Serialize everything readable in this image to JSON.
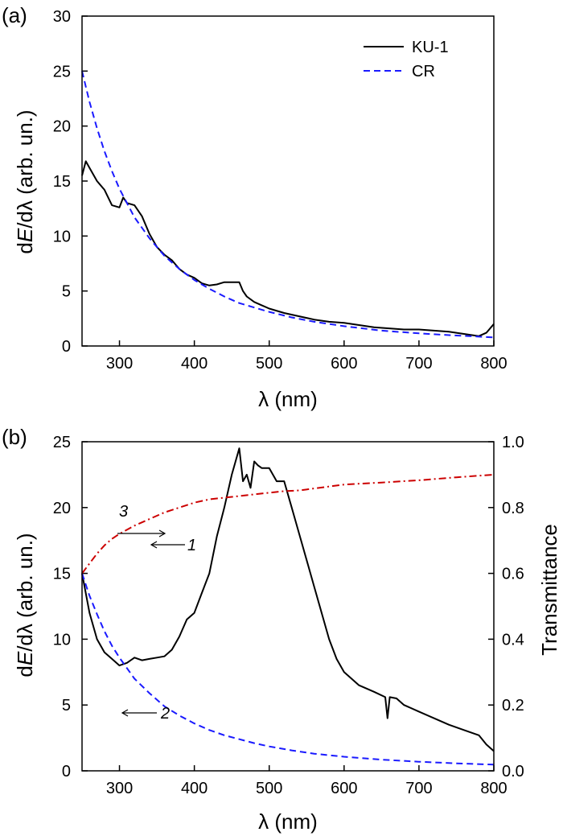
{
  "chart_data": [
    {
      "panel_label": "(a)",
      "type": "line",
      "xlabel": "λ (nm)",
      "ylabel": "dE/dλ (arb. un.)",
      "xlim": [
        250,
        800
      ],
      "ylim": [
        0,
        30
      ],
      "xticks": [
        300,
        400,
        500,
        600,
        700,
        800
      ],
      "yticks": [
        0,
        5,
        10,
        15,
        20,
        25,
        30
      ],
      "grid": false,
      "legend": "top-right",
      "series": [
        {
          "name": "KU-1",
          "color": "#000000",
          "style": "solid",
          "x": [
            250,
            255,
            260,
            270,
            280,
            290,
            300,
            305,
            310,
            320,
            330,
            340,
            350,
            360,
            370,
            380,
            390,
            400,
            410,
            420,
            430,
            440,
            450,
            460,
            465,
            470,
            480,
            490,
            500,
            520,
            540,
            560,
            580,
            600,
            620,
            640,
            660,
            680,
            700,
            720,
            740,
            760,
            780,
            790,
            800
          ],
          "values": [
            15.5,
            16.8,
            16.2,
            15.0,
            14.2,
            12.8,
            12.6,
            13.5,
            13.0,
            12.8,
            11.8,
            10.2,
            9.0,
            8.3,
            7.8,
            7.0,
            6.5,
            6.2,
            5.7,
            5.5,
            5.6,
            5.8,
            5.8,
            5.8,
            5.0,
            4.5,
            4.0,
            3.7,
            3.4,
            3.0,
            2.7,
            2.4,
            2.2,
            2.1,
            1.9,
            1.7,
            1.6,
            1.5,
            1.5,
            1.4,
            1.3,
            1.1,
            0.9,
            1.2,
            2.0
          ]
        },
        {
          "name": "CR",
          "color": "#1a1aff",
          "style": "dashed",
          "x": [
            250,
            260,
            270,
            280,
            290,
            300,
            320,
            340,
            360,
            380,
            400,
            420,
            440,
            460,
            480,
            500,
            530,
            560,
            600,
            650,
            700,
            750,
            800
          ],
          "values": [
            25.0,
            22.2,
            19.8,
            17.7,
            15.9,
            14.3,
            11.7,
            9.8,
            8.2,
            7.0,
            6.0,
            5.2,
            4.5,
            3.9,
            3.5,
            3.1,
            2.6,
            2.2,
            1.8,
            1.4,
            1.15,
            0.95,
            0.78
          ]
        }
      ]
    },
    {
      "panel_label": "(b)",
      "type": "line",
      "xlabel": "λ (nm)",
      "ylabel": "dE/dλ (arb. un.)",
      "y2label": "Transmittance",
      "xlim": [
        250,
        800
      ],
      "ylim": [
        0,
        25
      ],
      "y2lim": [
        0,
        1.0
      ],
      "xticks": [
        300,
        400,
        500,
        600,
        700,
        800
      ],
      "yticks": [
        0,
        5,
        10,
        15,
        20,
        25
      ],
      "y2ticks": [
        "0.0",
        "0.2",
        "0.4",
        "0.6",
        "0.8",
        "1.0"
      ],
      "grid": false,
      "series": [
        {
          "name": "1",
          "axis": "left",
          "color": "#000000",
          "style": "solid",
          "x": [
            250,
            260,
            270,
            280,
            290,
            300,
            310,
            320,
            330,
            340,
            350,
            360,
            370,
            380,
            390,
            400,
            410,
            420,
            430,
            440,
            450,
            460,
            465,
            470,
            475,
            480,
            485,
            490,
            500,
            510,
            520,
            530,
            540,
            550,
            560,
            570,
            580,
            590,
            600,
            620,
            640,
            655,
            658,
            661,
            670,
            680,
            700,
            720,
            740,
            760,
            780,
            790,
            800
          ],
          "values": [
            15.0,
            12.0,
            10.0,
            9.0,
            8.5,
            8.0,
            8.2,
            8.6,
            8.4,
            8.5,
            8.6,
            8.7,
            9.2,
            10.2,
            11.5,
            12.0,
            13.5,
            15.0,
            17.8,
            20.0,
            22.5,
            24.5,
            22.0,
            22.5,
            21.5,
            23.5,
            23.2,
            23.0,
            23.0,
            22.0,
            22.0,
            20.0,
            18.0,
            16.0,
            14.0,
            12.0,
            10.0,
            8.5,
            7.5,
            6.5,
            6.0,
            5.6,
            4.0,
            5.6,
            5.5,
            5.0,
            4.5,
            4.0,
            3.5,
            3.1,
            2.7,
            2.0,
            1.5
          ]
        },
        {
          "name": "2",
          "axis": "left",
          "color": "#1a1aff",
          "style": "dashed",
          "x": [
            250,
            260,
            270,
            280,
            290,
            300,
            320,
            340,
            360,
            380,
            400,
            420,
            440,
            460,
            480,
            500,
            530,
            560,
            600,
            650,
            700,
            750,
            800
          ],
          "values": [
            15.0,
            13.3,
            11.9,
            10.6,
            9.5,
            8.6,
            7.0,
            5.9,
            4.9,
            4.2,
            3.6,
            3.1,
            2.7,
            2.4,
            2.1,
            1.85,
            1.55,
            1.3,
            1.07,
            0.85,
            0.69,
            0.57,
            0.47
          ]
        },
        {
          "name": "3",
          "axis": "right",
          "color": "#cc0000",
          "style": "dash-dot",
          "x": [
            250,
            260,
            270,
            280,
            290,
            300,
            320,
            340,
            360,
            380,
            400,
            420,
            440,
            460,
            480,
            500,
            520,
            540,
            560,
            600,
            650,
            700,
            750,
            800
          ],
          "values": [
            0.6,
            0.63,
            0.66,
            0.685,
            0.705,
            0.72,
            0.745,
            0.765,
            0.785,
            0.8,
            0.815,
            0.825,
            0.83,
            0.835,
            0.84,
            0.845,
            0.85,
            0.852,
            0.858,
            0.87,
            0.876,
            0.883,
            0.892,
            0.9
          ]
        }
      ],
      "annotations": [
        {
          "text": "1",
          "arrow": "left"
        },
        {
          "text": "2",
          "arrow": "left"
        },
        {
          "text": "3",
          "arrow": "right"
        }
      ]
    }
  ]
}
